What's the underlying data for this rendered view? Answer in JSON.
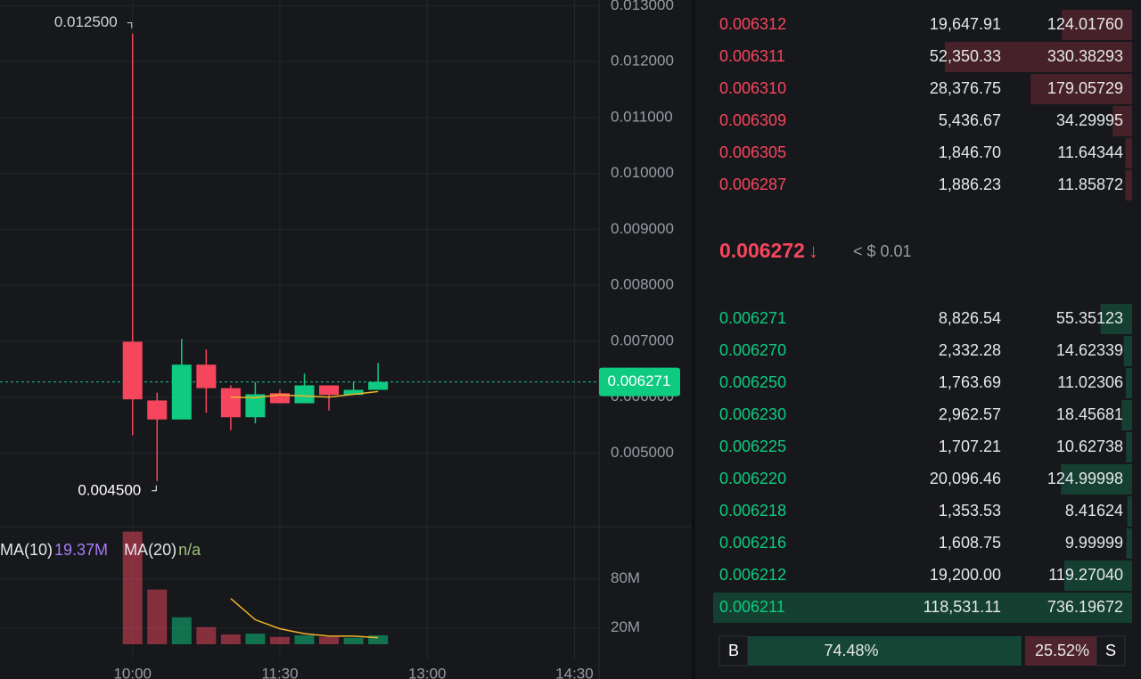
{
  "chart_data": {
    "type": "candlestick",
    "x": [
      "10:00",
      "10:15",
      "10:30",
      "10:45",
      "11:00",
      "11:15",
      "11:30",
      "11:45",
      "12:00",
      "12:15",
      "12:30"
    ],
    "open": [
      0.00699,
      0.00594,
      0.0056,
      0.00658,
      0.00616,
      0.00564,
      0.00607,
      0.00589,
      0.00621,
      0.00604,
      0.00613
    ],
    "high": [
      0.0125,
      0.00608,
      0.00704,
      0.00685,
      0.00621,
      0.00627,
      0.00613,
      0.00642,
      0.00621,
      0.00627,
      0.00661
    ],
    "low": [
      0.00532,
      0.0045,
      0.0056,
      0.00572,
      0.00541,
      0.00553,
      0.00589,
      0.00589,
      0.00576,
      0.00604,
      0.00613
    ],
    "close": [
      0.00596,
      0.0056,
      0.00658,
      0.00616,
      0.00564,
      0.00605,
      0.00589,
      0.00621,
      0.00604,
      0.00613,
      0.006271
    ],
    "up_color": "#0ecb81",
    "down_color": "#f6465d",
    "ma": {
      "color": "#f0b429",
      "values": [
        null,
        null,
        null,
        null,
        0.006,
        0.00599,
        0.00604,
        0.00602,
        0.006,
        0.00605,
        0.0061
      ]
    },
    "xlim": [
      "08:39",
      "14:45"
    ],
    "xticks": [
      "10:00",
      "11:30",
      "13:00",
      "14:30"
    ],
    "ylim": [
      0.0037,
      0.0131
    ],
    "yticks": [
      {
        "value": 0.005,
        "label": "0.005000"
      },
      {
        "value": 0.006,
        "label": "0.006000"
      },
      {
        "value": 0.007,
        "label": "0.007000"
      },
      {
        "value": 0.008,
        "label": "0.008000"
      },
      {
        "value": 0.009,
        "label": "0.009000"
      },
      {
        "value": 0.01,
        "label": "0.010000"
      },
      {
        "value": 0.011,
        "label": "0.011000"
      },
      {
        "value": 0.012,
        "label": "0.012000"
      },
      {
        "value": 0.013,
        "label": "0.013000"
      }
    ],
    "grid": true,
    "high_label": {
      "value": 0.0125,
      "label": "0.012500"
    },
    "low_label": {
      "value": 0.0045,
      "label": "0.004500"
    },
    "last_price": 0.006271,
    "volume": {
      "values": [
        138000000,
        67000000,
        33000000,
        21000000,
        12000000,
        13000000,
        9000000,
        11000000,
        9000000,
        8000000,
        11000000
      ],
      "ma": {
        "color": "#f0b429",
        "values": [
          null,
          null,
          null,
          null,
          56000000,
          30000000,
          19000000,
          13000000,
          10000000,
          10000000,
          8000000
        ]
      },
      "ylim": [
        0,
        143000000
      ],
      "yticks": [
        {
          "value": 20000000,
          "label": "20M"
        },
        {
          "value": 80000000,
          "label": "80M"
        }
      ],
      "legend": [
        {
          "label": "MA(10)",
          "value": "19.37M",
          "color": "#a77bf3"
        },
        {
          "label": "MA(20)",
          "value": "n/a",
          "color": "#9ec27a"
        }
      ]
    }
  },
  "order_book": {
    "asks": [
      [
        "0.006312",
        "19,647.91",
        "124.01760"
      ],
      [
        "0.006311",
        "52,350.33",
        "330.38293"
      ],
      [
        "0.006310",
        "28,376.75",
        "179.05729"
      ],
      [
        "0.006309",
        "5,436.67",
        "34.29995"
      ],
      [
        "0.006305",
        "1,846.70",
        "11.64344"
      ],
      [
        "0.006287",
        "1,886.23",
        "11.85872"
      ]
    ],
    "mid_price": "0.006272",
    "mid_arrow": "↓",
    "mid_usd": "< $ 0.01",
    "bids": [
      [
        "0.006271",
        "8,826.54",
        "55.35123"
      ],
      [
        "0.006270",
        "2,332.28",
        "14.62339"
      ],
      [
        "0.006250",
        "1,763.69",
        "11.02306"
      ],
      [
        "0.006230",
        "2,962.57",
        "18.45681"
      ],
      [
        "0.006225",
        "1,707.21",
        "10.62738"
      ],
      [
        "0.006220",
        "20,096.46",
        "124.99998"
      ],
      [
        "0.006218",
        "1,353.53",
        "8.41624"
      ],
      [
        "0.006216",
        "1,608.75",
        "9.99999"
      ],
      [
        "0.006212",
        "19,200.00",
        "119.27040"
      ],
      [
        "0.006211",
        "118,531.11",
        "736.19672"
      ]
    ],
    "ratio": {
      "buy_label": "B",
      "buy": 74.48,
      "buy_text": "74.48%",
      "sell": 25.52,
      "sell_text": "25.52%",
      "sell_label": "S"
    }
  }
}
